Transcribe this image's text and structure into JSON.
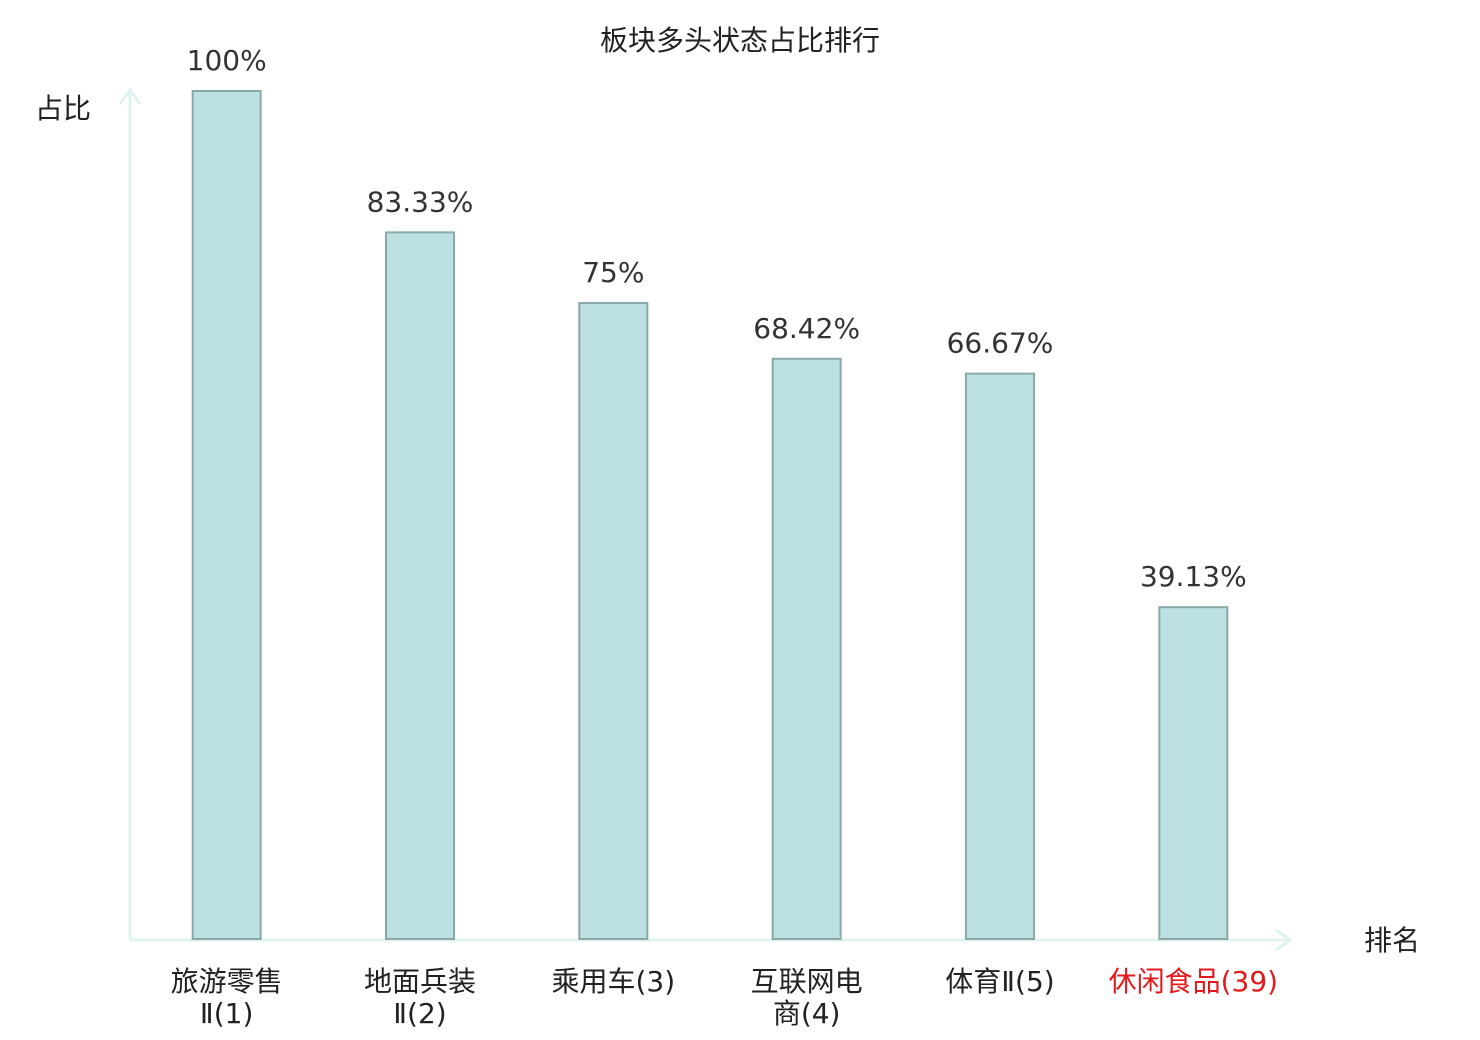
{
  "chart_data": {
    "type": "bar",
    "title": "板块多头状态占比排行",
    "y_label": "占比",
    "x_label": "排名",
    "categories": [
      "旅游零售\nⅡ(1)",
      "地面兵装\nⅡ(2)",
      "乘用车(3)",
      "互联网电\n商(4)",
      "体育Ⅱ(5)",
      "休闲食品(39)"
    ],
    "category_colors": [
      "#222222",
      "#222222",
      "#222222",
      "#222222",
      "#222222",
      "#e31a1c"
    ],
    "values": [
      100,
      83.33,
      75,
      68.42,
      66.67,
      39.13
    ],
    "value_labels": [
      "100%",
      "83.33%",
      "75%",
      "68.42%",
      "66.67%",
      "39.13%"
    ],
    "color": "#bde0e2",
    "edge_color": "#8aa8aa",
    "ylim": [
      0,
      100
    ]
  }
}
